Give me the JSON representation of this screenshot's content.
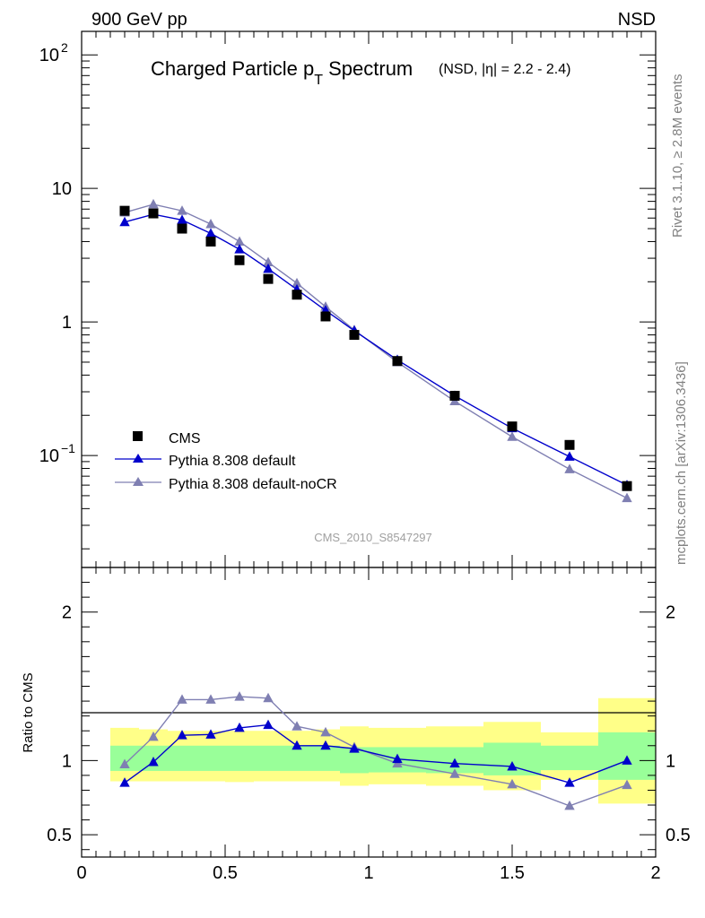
{
  "header": {
    "left": "900 GeV pp",
    "right": "NSD"
  },
  "side_labels": {
    "rivet": "Rivet 3.1.10, ≥ 2.8M events",
    "mcplots": "mcplots.cern.ch [arXiv:1306.3436]"
  },
  "chart_data": [
    {
      "type": "scatter",
      "title_main": "Charged Particle p",
      "title_sub_t": "T",
      "title_rest": " Spectrum",
      "title_extra": "(NSD, |η| = 2.2 - 2.4)",
      "watermark": "CMS_2010_S8547297",
      "yscale": "log",
      "xlim": [
        0,
        2
      ],
      "ylim": [
        0.0145,
        150
      ],
      "ytick_labels": [
        {
          "value": 100,
          "label": "10",
          "sup": "2"
        },
        {
          "value": 10,
          "label": "10",
          "sup": ""
        },
        {
          "value": 1,
          "label": "1",
          "sup": ""
        },
        {
          "value": 0.1,
          "label": "10",
          "sup": "−1"
        }
      ],
      "legend_position": "lower-left",
      "series": [
        {
          "name": "CMS",
          "color": "#000000",
          "marker": "square",
          "x": [
            0.15,
            0.25,
            0.35,
            0.45,
            0.55,
            0.65,
            0.75,
            0.85,
            0.95,
            1.1,
            1.3,
            1.5,
            1.7,
            1.9
          ],
          "y": [
            6.8,
            6.5,
            5.0,
            4.0,
            2.9,
            2.1,
            1.6,
            1.1,
            0.8,
            0.51,
            0.28,
            0.165,
            0.12,
            0.059
          ]
        },
        {
          "name": "Pythia 8.308 default",
          "color": "#0000cc",
          "marker": "triangle",
          "x": [
            0.15,
            0.25,
            0.35,
            0.45,
            0.55,
            0.65,
            0.75,
            0.85,
            0.95,
            1.1,
            1.3,
            1.5,
            1.7,
            1.9
          ],
          "y": [
            5.6,
            6.4,
            5.8,
            4.6,
            3.5,
            2.5,
            1.75,
            1.22,
            0.86,
            0.52,
            0.28,
            0.16,
            0.098,
            0.06
          ]
        },
        {
          "name": "Pythia 8.308 default-noCR",
          "color": "#7f7fb2",
          "marker": "triangle",
          "x": [
            0.15,
            0.25,
            0.35,
            0.45,
            0.55,
            0.65,
            0.75,
            0.85,
            0.95,
            1.1,
            1.3,
            1.5,
            1.7,
            1.9
          ],
          "y": [
            6.6,
            7.6,
            6.8,
            5.4,
            4.0,
            2.8,
            1.95,
            1.3,
            0.87,
            0.5,
            0.255,
            0.138,
            0.079,
            0.048
          ]
        }
      ]
    },
    {
      "type": "line",
      "ylabel": "Ratio to CMS",
      "xlim": [
        0,
        2
      ],
      "ylim": [
        0.35,
        2.3
      ],
      "xtick_labels": [
        {
          "value": 0,
          "label": "0"
        },
        {
          "value": 0.5,
          "label": "0.5"
        },
        {
          "value": 1,
          "label": "1"
        },
        {
          "value": 1.5,
          "label": "1.5"
        },
        {
          "value": 2,
          "label": "2"
        }
      ],
      "ytick_labels": [
        {
          "value": 2,
          "label": "2"
        },
        {
          "value": 1,
          "label": "1"
        },
        {
          "value": 0.5,
          "label": "0.5"
        }
      ],
      "band_colors": {
        "inner": "#99ff99",
        "outer": "#ffff88"
      },
      "bands": [
        {
          "x0": 0.1,
          "x1": 0.2,
          "outer": [
            0.86,
            1.22
          ],
          "inner": [
            0.93,
            1.1
          ]
        },
        {
          "x0": 0.2,
          "x1": 0.3,
          "outer": [
            0.86,
            1.21
          ],
          "inner": [
            0.93,
            1.1
          ]
        },
        {
          "x0": 0.3,
          "x1": 0.4,
          "outer": [
            0.86,
            1.2
          ],
          "inner": [
            0.93,
            1.1
          ]
        },
        {
          "x0": 0.4,
          "x1": 0.5,
          "outer": [
            0.86,
            1.2
          ],
          "inner": [
            0.93,
            1.1
          ]
        },
        {
          "x0": 0.5,
          "x1": 0.6,
          "outer": [
            0.855,
            1.2
          ],
          "inner": [
            0.93,
            1.1
          ]
        },
        {
          "x0": 0.6,
          "x1": 0.7,
          "outer": [
            0.86,
            1.2
          ],
          "inner": [
            0.93,
            1.1
          ]
        },
        {
          "x0": 0.7,
          "x1": 0.8,
          "outer": [
            0.86,
            1.2
          ],
          "inner": [
            0.93,
            1.1
          ]
        },
        {
          "x0": 0.8,
          "x1": 0.9,
          "outer": [
            0.86,
            1.21
          ],
          "inner": [
            0.93,
            1.1
          ]
        },
        {
          "x0": 0.9,
          "x1": 1.0,
          "outer": [
            0.83,
            1.23
          ],
          "inner": [
            0.915,
            1.09
          ]
        },
        {
          "x0": 1.0,
          "x1": 1.2,
          "outer": [
            0.84,
            1.22
          ],
          "inner": [
            0.92,
            1.09
          ]
        },
        {
          "x0": 1.2,
          "x1": 1.4,
          "outer": [
            0.83,
            1.23
          ],
          "inner": [
            0.915,
            1.09
          ]
        },
        {
          "x0": 1.4,
          "x1": 1.6,
          "outer": [
            0.8,
            1.26
          ],
          "inner": [
            0.9,
            1.12
          ]
        },
        {
          "x0": 1.6,
          "x1": 1.8,
          "outer": [
            0.87,
            1.19
          ],
          "inner": [
            0.935,
            1.1
          ]
        },
        {
          "x0": 1.8,
          "x1": 2.0,
          "outer": [
            0.71,
            1.42
          ],
          "inner": [
            0.87,
            1.19
          ]
        }
      ],
      "series": [
        {
          "name": "Pythia 8.308 default",
          "color": "#0000cc",
          "marker": "triangle",
          "x": [
            0.15,
            0.25,
            0.35,
            0.45,
            0.55,
            0.65,
            0.75,
            0.85,
            0.95,
            1.1,
            1.3,
            1.5,
            1.7,
            1.9
          ],
          "y": [
            0.85,
            0.99,
            1.17,
            1.175,
            1.22,
            1.24,
            1.1,
            1.1,
            1.08,
            1.01,
            0.98,
            0.96,
            0.85,
            1.0
          ]
        },
        {
          "name": "Pythia 8.308 default-noCR",
          "color": "#7f7fb2",
          "marker": "triangle",
          "x": [
            0.15,
            0.25,
            0.35,
            0.45,
            0.55,
            0.65,
            0.75,
            0.85,
            0.95,
            1.1,
            1.3,
            1.5,
            1.7,
            1.9
          ],
          "y": [
            0.975,
            1.16,
            1.41,
            1.41,
            1.43,
            1.42,
            1.23,
            1.19,
            1.09,
            0.98,
            0.91,
            0.84,
            0.695,
            0.835
          ]
        }
      ]
    }
  ]
}
